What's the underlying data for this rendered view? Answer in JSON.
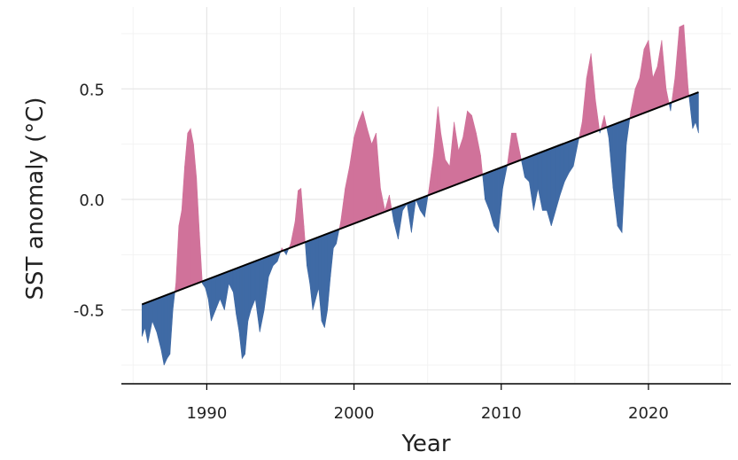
{
  "chart_data": {
    "type": "area",
    "xlabel": "Year",
    "ylabel": "SST anomaly (°C)",
    "xlim": [
      1984.2,
      2025.6
    ],
    "ylim": [
      -0.83,
      0.87
    ],
    "x_ticks": [
      1990,
      2000,
      2010,
      2020
    ],
    "x_tick_labels": [
      "1990",
      "2000",
      "2010",
      "2020"
    ],
    "y_ticks": [
      -0.5,
      0.0,
      0.5
    ],
    "y_tick_labels": [
      "-0.5",
      "0.0",
      "0.5"
    ],
    "grid": true,
    "trend_line": {
      "x": [
        1985.6,
        2023.4
      ],
      "y": [
        -0.475,
        0.485
      ]
    },
    "colors": {
      "above_trend": "#d0729a",
      "below_trend": "#3f6aa5",
      "trend": "#000000"
    },
    "series": [
      {
        "x": [
          1985.6,
          1985.8,
          1986.0,
          1986.3,
          1986.6,
          1986.9,
          1987.1,
          1987.3,
          1987.5,
          1987.7,
          1987.9,
          1988.1,
          1988.3,
          1988.5,
          1988.7,
          1988.9,
          1989.1,
          1989.3,
          1989.5,
          1989.7,
          1989.9,
          1990.1,
          1990.3,
          1990.6,
          1990.9,
          1991.2,
          1991.5,
          1991.8,
          1992.0,
          1992.2,
          1992.4,
          1992.6,
          1992.8,
          1993.0,
          1993.3,
          1993.6,
          1993.9,
          1994.2,
          1994.5,
          1994.8,
          1995.1,
          1995.4,
          1995.7,
          1996.0,
          1996.2,
          1996.4,
          1996.6,
          1996.8,
          1997.0,
          1997.2,
          1997.4,
          1997.6,
          1997.8,
          1998.0,
          1998.2,
          1998.4,
          1998.6,
          1998.8,
          1999.1,
          1999.4,
          1999.7,
          2000.0,
          2000.3,
          2000.6,
          2000.9,
          2001.2,
          2001.5,
          2001.8,
          2002.1,
          2002.4,
          2002.7,
          2003.0,
          2003.3,
          2003.6,
          2003.9,
          2004.2,
          2004.5,
          2004.8,
          2005.1,
          2005.4,
          2005.7,
          2005.9,
          2006.2,
          2006.5,
          2006.8,
          2007.1,
          2007.4,
          2007.7,
          2008.0,
          2008.3,
          2008.6,
          2008.9,
          2009.2,
          2009.5,
          2009.8,
          2010.1,
          2010.4,
          2010.7,
          2011.0,
          2011.3,
          2011.6,
          2011.9,
          2012.2,
          2012.5,
          2012.8,
          2013.1,
          2013.4,
          2013.7,
          2014.0,
          2014.3,
          2014.6,
          2014.9,
          2015.2,
          2015.5,
          2015.8,
          2016.1,
          2016.4,
          2016.7,
          2017.0,
          2017.3,
          2017.6,
          2017.9,
          2018.2,
          2018.5,
          2018.8,
          2019.1,
          2019.4,
          2019.7,
          2020.0,
          2020.3,
          2020.6,
          2020.9,
          2021.2,
          2021.5,
          2021.8,
          2022.1,
          2022.4,
          2022.7,
          2023.0,
          2023.2,
          2023.4
        ],
        "values": [
          -0.62,
          -0.58,
          -0.65,
          -0.55,
          -0.6,
          -0.68,
          -0.75,
          -0.72,
          -0.7,
          -0.5,
          -0.38,
          -0.12,
          -0.05,
          0.15,
          0.3,
          0.32,
          0.25,
          0.1,
          -0.15,
          -0.38,
          -0.4,
          -0.45,
          -0.55,
          -0.5,
          -0.45,
          -0.5,
          -0.38,
          -0.42,
          -0.52,
          -0.6,
          -0.72,
          -0.7,
          -0.55,
          -0.5,
          -0.45,
          -0.6,
          -0.5,
          -0.35,
          -0.3,
          -0.28,
          -0.22,
          -0.25,
          -0.2,
          -0.1,
          0.04,
          0.05,
          -0.12,
          -0.3,
          -0.38,
          -0.5,
          -0.45,
          -0.4,
          -0.55,
          -0.58,
          -0.5,
          -0.35,
          -0.22,
          -0.2,
          -0.1,
          0.05,
          0.15,
          0.28,
          0.35,
          0.4,
          0.32,
          0.25,
          0.3,
          0.05,
          -0.05,
          0.02,
          -0.1,
          -0.18,
          -0.05,
          -0.02,
          -0.15,
          0.0,
          -0.05,
          -0.08,
          0.05,
          0.2,
          0.42,
          0.3,
          0.18,
          0.15,
          0.35,
          0.22,
          0.28,
          0.4,
          0.38,
          0.3,
          0.2,
          0.0,
          -0.05,
          -0.12,
          -0.15,
          0.05,
          0.15,
          0.3,
          0.3,
          0.2,
          0.1,
          0.08,
          -0.05,
          0.05,
          -0.05,
          -0.05,
          -0.12,
          -0.05,
          0.02,
          0.08,
          0.12,
          0.15,
          0.25,
          0.35,
          0.55,
          0.66,
          0.45,
          0.3,
          0.38,
          0.28,
          0.05,
          -0.12,
          -0.15,
          0.25,
          0.4,
          0.5,
          0.55,
          0.68,
          0.72,
          0.55,
          0.6,
          0.72,
          0.5,
          0.4,
          0.55,
          0.78,
          0.79,
          0.5,
          0.32,
          0.35,
          0.3
        ]
      }
    ]
  }
}
